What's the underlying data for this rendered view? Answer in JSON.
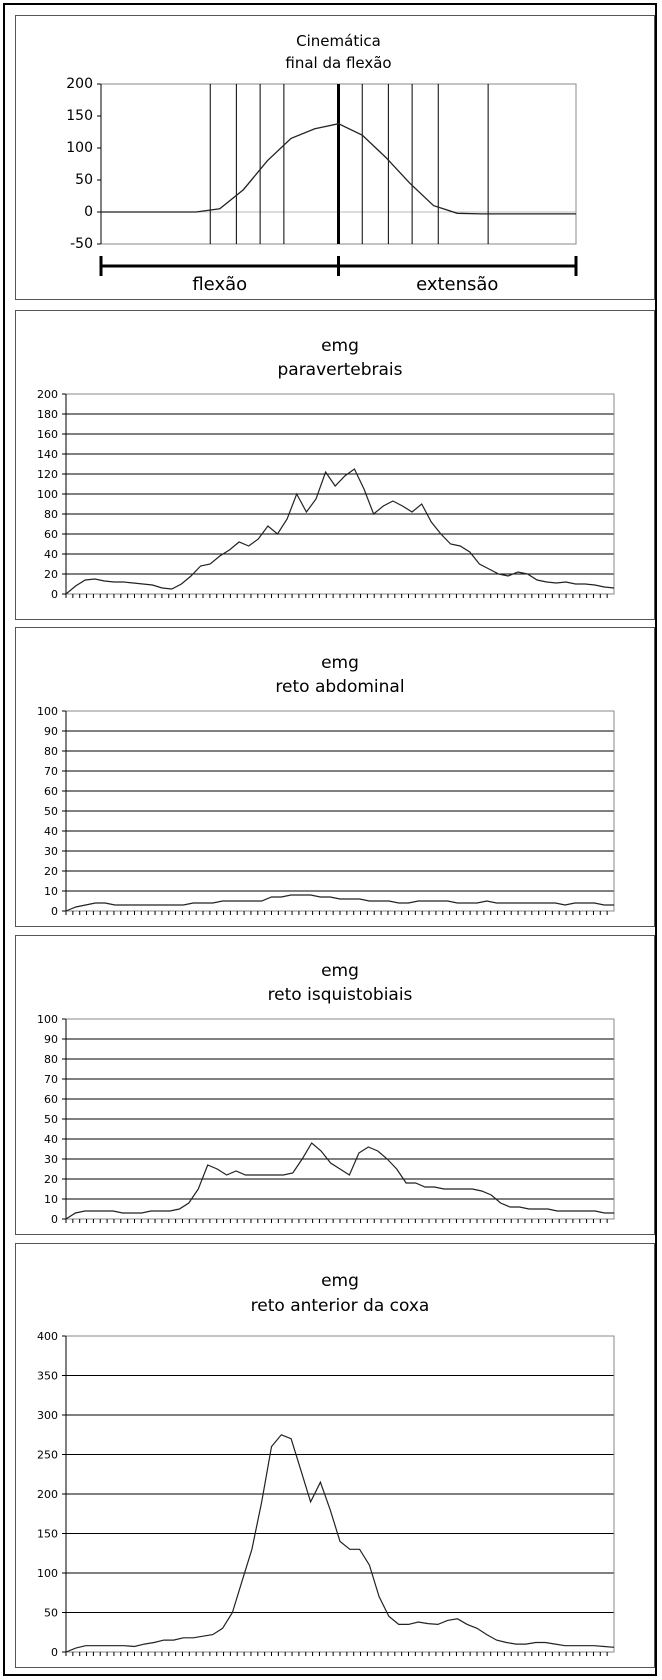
{
  "chart_data": [
    {
      "type": "line",
      "title": "Cinemática\nfinal da flexão",
      "ylim": [
        -50,
        200
      ],
      "yticks": [
        -50,
        0,
        50,
        100,
        150,
        200
      ],
      "x": [
        0,
        10,
        20,
        30,
        40,
        50,
        60,
        70,
        80,
        90,
        100,
        110,
        120,
        130,
        140,
        150,
        160,
        170,
        180,
        190,
        200
      ],
      "values": [
        0,
        0,
        0,
        0,
        0,
        5,
        35,
        80,
        115,
        130,
        138,
        120,
        85,
        45,
        10,
        -2,
        -3,
        -3,
        -3,
        -3,
        -3
      ],
      "phases": [
        "flexão",
        "extensão"
      ],
      "grid": "vertical-markers"
    },
    {
      "type": "line",
      "title": "emg\nparavertebrais",
      "ylim": [
        0,
        200
      ],
      "yticks": [
        0,
        20,
        40,
        60,
        80,
        100,
        120,
        140,
        160,
        180,
        200
      ],
      "values": [
        0,
        8,
        14,
        15,
        13,
        12,
        12,
        11,
        10,
        9,
        6,
        5,
        10,
        18,
        28,
        30,
        38,
        44,
        52,
        48,
        55,
        68,
        60,
        75,
        100,
        82,
        95,
        122,
        108,
        118,
        125,
        105,
        80,
        88,
        93,
        88,
        82,
        90,
        72,
        60,
        50,
        48,
        42,
        30,
        25,
        20,
        18,
        22,
        20,
        14,
        12,
        11,
        12,
        10,
        10,
        9,
        7,
        6
      ],
      "grid": "horizontal"
    },
    {
      "type": "line",
      "title": "emg\nreto abdominal",
      "ylim": [
        0,
        100
      ],
      "yticks": [
        0,
        10,
        20,
        30,
        40,
        50,
        60,
        70,
        80,
        90,
        100
      ],
      "values": [
        0,
        2,
        3,
        4,
        4,
        3,
        3,
        3,
        3,
        3,
        3,
        3,
        3,
        4,
        4,
        4,
        5,
        5,
        5,
        5,
        5,
        7,
        7,
        8,
        8,
        8,
        7,
        7,
        6,
        6,
        6,
        5,
        5,
        5,
        4,
        4,
        5,
        5,
        5,
        5,
        4,
        4,
        4,
        5,
        4,
        4,
        4,
        4,
        4,
        4,
        4,
        3,
        4,
        4,
        4,
        3,
        3
      ],
      "grid": "horizontal"
    },
    {
      "type": "line",
      "title": "emg\nreto isquistobiais",
      "ylim": [
        0,
        100
      ],
      "yticks": [
        0,
        10,
        20,
        30,
        40,
        50,
        60,
        70,
        80,
        90,
        100
      ],
      "values": [
        0,
        3,
        4,
        4,
        4,
        4,
        3,
        3,
        3,
        4,
        4,
        4,
        5,
        8,
        15,
        27,
        25,
        22,
        24,
        22,
        22,
        22,
        22,
        22,
        23,
        30,
        38,
        34,
        28,
        25,
        22,
        33,
        36,
        34,
        30,
        25,
        18,
        18,
        16,
        16,
        15,
        15,
        15,
        15,
        14,
        12,
        8,
        6,
        6,
        5,
        5,
        5,
        4,
        4,
        4,
        4,
        4,
        3,
        3
      ],
      "grid": "horizontal"
    },
    {
      "type": "line",
      "title": "emg\nreto anterior da coxa",
      "ylim": [
        0,
        400
      ],
      "yticks": [
        0,
        50,
        100,
        150,
        200,
        250,
        300,
        350,
        400
      ],
      "values": [
        0,
        5,
        8,
        8,
        8,
        8,
        8,
        7,
        10,
        12,
        15,
        15,
        18,
        18,
        20,
        22,
        30,
        50,
        90,
        130,
        190,
        260,
        275,
        270,
        230,
        190,
        215,
        180,
        140,
        130,
        130,
        110,
        70,
        45,
        35,
        35,
        38,
        36,
        35,
        40,
        42,
        35,
        30,
        22,
        15,
        12,
        10,
        10,
        12,
        12,
        10,
        8,
        8,
        8,
        8,
        7,
        6
      ],
      "grid": "horizontal"
    }
  ]
}
